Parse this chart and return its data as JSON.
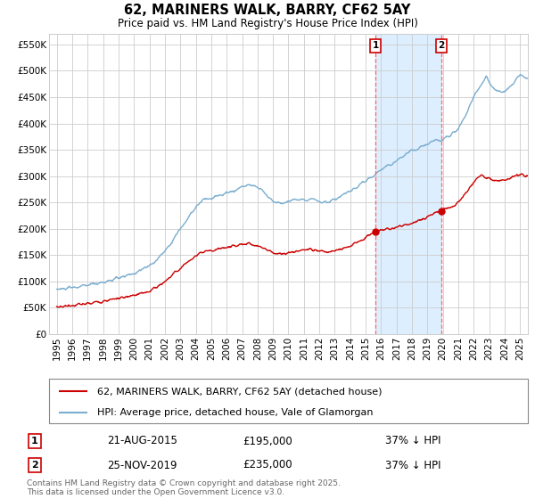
{
  "title": "62, MARINERS WALK, BARRY, CF62 5AY",
  "subtitle": "Price paid vs. HM Land Registry's House Price Index (HPI)",
  "legend_label_red": "62, MARINERS WALK, BARRY, CF62 5AY (detached house)",
  "legend_label_blue": "HPI: Average price, detached house, Vale of Glamorgan",
  "annotation1_date": "21-AUG-2015",
  "annotation1_price": "£195,000",
  "annotation1_hpi": "37% ↓ HPI",
  "annotation1_year": 2015.64,
  "annotation2_date": "25-NOV-2019",
  "annotation2_price": "£235,000",
  "annotation2_hpi": "37% ↓ HPI",
  "annotation2_year": 2019.9,
  "footer": "Contains HM Land Registry data © Crown copyright and database right 2025.\nThis data is licensed under the Open Government Licence v3.0.",
  "ylim": [
    0,
    570000
  ],
  "yticks": [
    0,
    50000,
    100000,
    150000,
    200000,
    250000,
    300000,
    350000,
    400000,
    450000,
    500000,
    550000
  ],
  "ytick_labels": [
    "£0",
    "£50K",
    "£100K",
    "£150K",
    "£200K",
    "£250K",
    "£300K",
    "£350K",
    "£400K",
    "£450K",
    "£500K",
    "£550K"
  ],
  "xlim_start": 1994.5,
  "xlim_end": 2025.5,
  "xticks": [
    1995,
    1996,
    1997,
    1998,
    1999,
    2000,
    2001,
    2002,
    2003,
    2004,
    2005,
    2006,
    2007,
    2008,
    2009,
    2010,
    2011,
    2012,
    2013,
    2014,
    2015,
    2016,
    2017,
    2018,
    2019,
    2020,
    2021,
    2022,
    2023,
    2024,
    2025
  ],
  "red_color": "#cc0000",
  "blue_color": "#7aadcf",
  "shade_color": "#ddeeff",
  "dashed_color": "#ff6666",
  "background_color": "#ffffff",
  "grid_color": "#cccccc",
  "title_fontsize": 10.5,
  "subtitle_fontsize": 8.5,
  "tick_fontsize": 7.5,
  "legend_fontsize": 8,
  "ann_fontsize": 8.5,
  "footer_fontsize": 6.5
}
